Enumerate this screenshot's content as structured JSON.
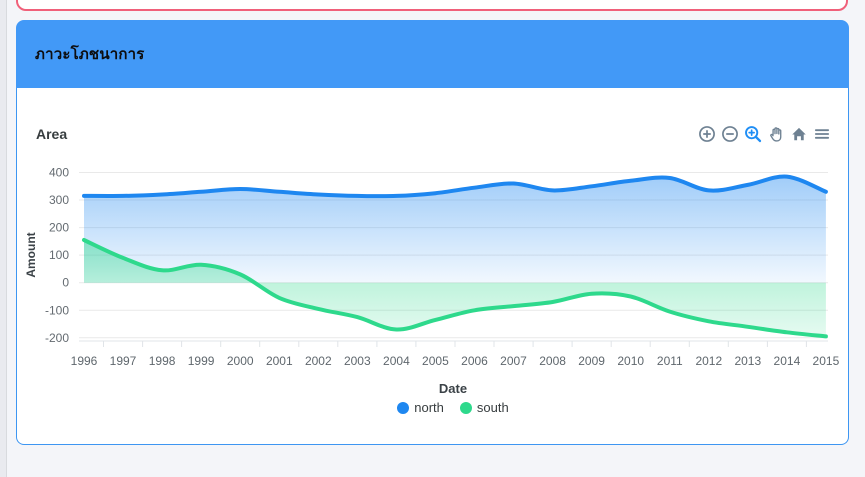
{
  "page": {
    "background_color": "#f4f5f9"
  },
  "top_card": {
    "border_color": "#f0607a"
  },
  "panel": {
    "title": "ภาวะโภชนาการ",
    "header_color": "#4299f7",
    "body_border_color": "#3d96f2"
  },
  "chart": {
    "title": "Area",
    "toolbar": [
      "zoom-in",
      "zoom-out",
      "selection-zoom",
      "pan",
      "home",
      "menu"
    ],
    "toolbar_icon_color": "#6e8192",
    "toolbar_active_color": "#1f8ef5"
  },
  "chart_data": {
    "type": "area",
    "title": "Area",
    "xlabel": "Date",
    "ylabel": "Amount",
    "x": [
      1996,
      1997,
      1998,
      1999,
      2000,
      2001,
      2002,
      2003,
      2004,
      2005,
      2006,
      2007,
      2008,
      2009,
      2010,
      2011,
      2012,
      2013,
      2014,
      2015
    ],
    "series": [
      {
        "name": "north",
        "color": "#1e87f0",
        "values": [
          315,
          315,
          320,
          330,
          340,
          330,
          320,
          315,
          315,
          325,
          345,
          360,
          335,
          350,
          370,
          380,
          335,
          355,
          385,
          330
        ]
      },
      {
        "name": "south",
        "color": "#2ed98c",
        "values": [
          155,
          90,
          45,
          65,
          30,
          -55,
          -95,
          -125,
          -170,
          -135,
          -100,
          -85,
          -70,
          -40,
          -50,
          -105,
          -140,
          -160,
          -180,
          -195
        ]
      }
    ],
    "ylim": [
      -200,
      400
    ],
    "yticks": [
      400,
      300,
      200,
      100,
      0,
      -100,
      -200
    ],
    "grid": "horizontal",
    "legend_position": "bottom",
    "curve": "smooth",
    "fill": "gradient"
  }
}
